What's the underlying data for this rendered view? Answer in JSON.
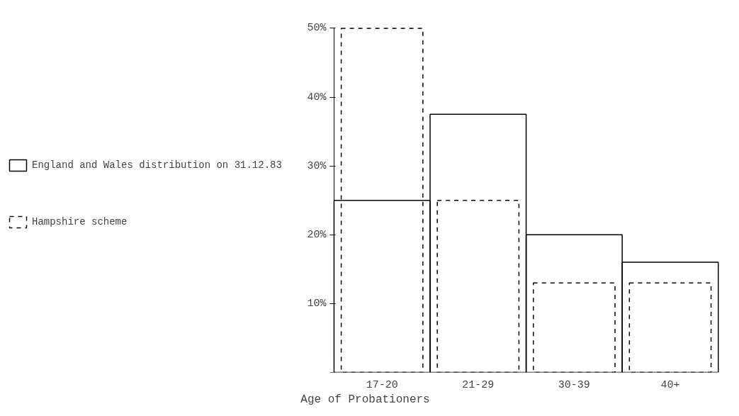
{
  "chart_data": {
    "type": "bar",
    "categories": [
      "17-20",
      "21-29",
      "30-39",
      "40+"
    ],
    "series": [
      {
        "name": "England and Wales distribution on 31.12.83",
        "color": "#000000",
        "values": [
          25,
          37.5,
          20,
          16
        ],
        "line_style": "solid"
      },
      {
        "name": "Hampshire scheme",
        "color": "#000000",
        "values": [
          50,
          25,
          13,
          13
        ],
        "line_style": "dashed"
      }
    ],
    "xlabel": "Age of Probationers",
    "ylim": [
      0,
      50
    ],
    "yticks": [
      {
        "value": 0,
        "label": null
      },
      {
        "value": 10,
        "label": "10%"
      },
      {
        "value": 20,
        "label": "20%"
      },
      {
        "value": 30,
        "label": "30%"
      },
      {
        "value": 40,
        "label": "40%"
      },
      {
        "value": 50,
        "label": "50%"
      }
    ],
    "grid": false,
    "legend": "left"
  }
}
